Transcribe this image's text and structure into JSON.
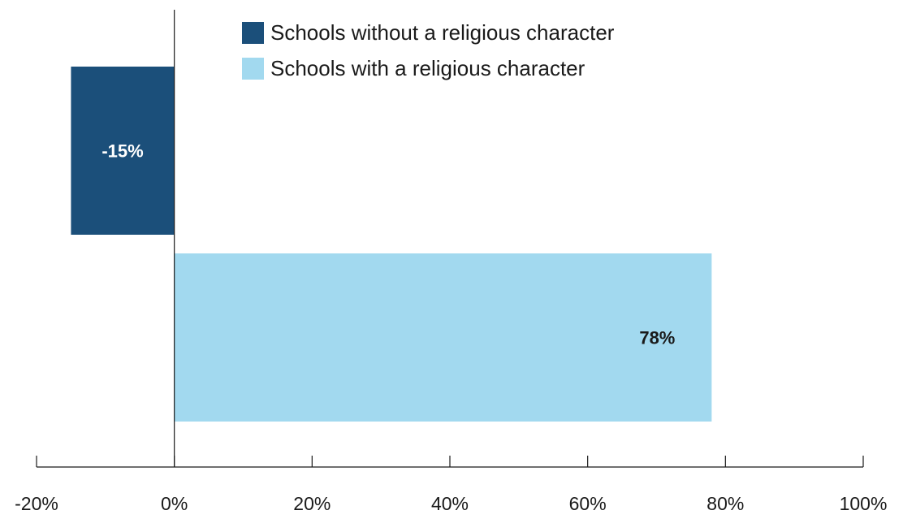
{
  "chart_data": {
    "type": "bar",
    "orientation": "horizontal",
    "title": "",
    "xlabel": "",
    "ylabel": "",
    "xlim": [
      -20,
      100
    ],
    "x_ticks": [
      -20,
      0,
      20,
      40,
      60,
      80,
      100
    ],
    "x_tick_labels": [
      "-20%",
      "0%",
      "20%",
      "40%",
      "60%",
      "80%",
      "100%"
    ],
    "grid": false,
    "legend_position": "top-center",
    "series": [
      {
        "name": "Schools without a religious character",
        "value": -15,
        "label": "-15%",
        "color": "#1b4f7a",
        "label_color": "#ffffff"
      },
      {
        "name": "Schools with a religious character",
        "value": 78,
        "label": "78%",
        "color": "#a2d9ef",
        "label_color": "#1a1a1a"
      }
    ]
  }
}
